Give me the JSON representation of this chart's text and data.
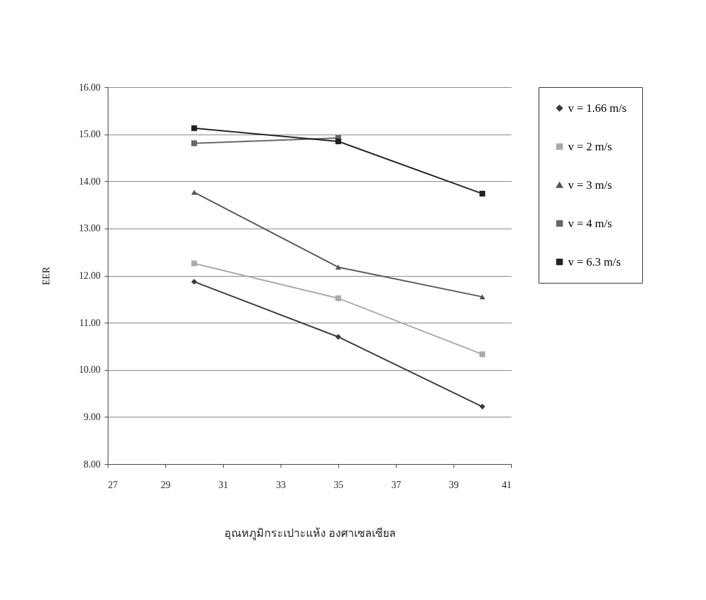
{
  "chart_data": {
    "type": "line",
    "xlabel": "อุณหภูมิกระเปาะแห้ง องศาเซลเซียล",
    "ylabel": "EER",
    "xlim": [
      27,
      41
    ],
    "xticks": [
      27,
      29,
      31,
      33,
      35,
      37,
      39,
      41
    ],
    "ylim": [
      8,
      16
    ],
    "yticks": [
      {
        "value": 8,
        "label": "8.00"
      },
      {
        "value": 9,
        "label": "9.00"
      },
      {
        "value": 10,
        "label": "10.00"
      },
      {
        "value": 11,
        "label": "11.00"
      },
      {
        "value": 12,
        "label": "12.00"
      },
      {
        "value": 13,
        "label": "13.00"
      },
      {
        "value": 14,
        "label": "14.00"
      },
      {
        "value": 15,
        "label": "15.00"
      },
      {
        "value": 16,
        "label": "16.00"
      }
    ],
    "grid": "y",
    "legend": "right",
    "line_style": "solid",
    "x": [
      30,
      35,
      40
    ],
    "series": [
      {
        "name": "v = 1.66 m/s",
        "color": "#3a3a3a",
        "marker": "diamond",
        "values": [
          11.87,
          10.7,
          9.22
        ]
      },
      {
        "name": "v = 2 m/s",
        "color": "#aaaaaa",
        "marker": "square",
        "values": [
          12.26,
          11.52,
          10.33
        ]
      },
      {
        "name": "v = 3 m/s",
        "color": "#555555",
        "marker": "triangle",
        "values": [
          13.77,
          12.18,
          11.55
        ]
      },
      {
        "name": "v = 4 m/s",
        "color": "#666666",
        "marker": "square",
        "values": [
          14.81,
          14.92,
          null
        ]
      },
      {
        "name": "v = 6.3 m/s",
        "color": "#222222",
        "marker": "square",
        "values": [
          15.13,
          14.85,
          13.74
        ]
      }
    ]
  }
}
